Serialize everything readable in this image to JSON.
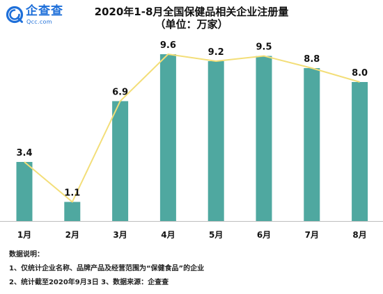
{
  "brand": {
    "name_cn": "企查查",
    "name_en": "Qcc.com",
    "color": "#1e6fd9"
  },
  "header": {
    "title_line1": "2020年1-8月全国保健品相关企业注册量",
    "title_line2": "（单位：万家）"
  },
  "chart_data": {
    "type": "bar",
    "title": "2020年1-8月全国保健品相关企业注册量",
    "subtitle": "（单位：万家）",
    "categories": [
      "1月",
      "2月",
      "3月",
      "4月",
      "5月",
      "6月",
      "7月",
      "8月"
    ],
    "values": [
      3.4,
      1.1,
      6.9,
      9.6,
      9.2,
      9.5,
      8.8,
      8.0
    ],
    "overlay_line": true,
    "xlabel": "",
    "ylabel": "",
    "ylim": [
      0,
      10
    ],
    "grid": false,
    "legend": "none",
    "bar_color": "#4fa8a0",
    "line_color": "#f3de78"
  },
  "notes": {
    "heading": "数据说明：",
    "line1": "1、仅统计企业名称、品牌产品及经营范围为“保健食品”的企业",
    "line2": "2、统计截至2020年9月3日    3、数据来源：企查查"
  }
}
